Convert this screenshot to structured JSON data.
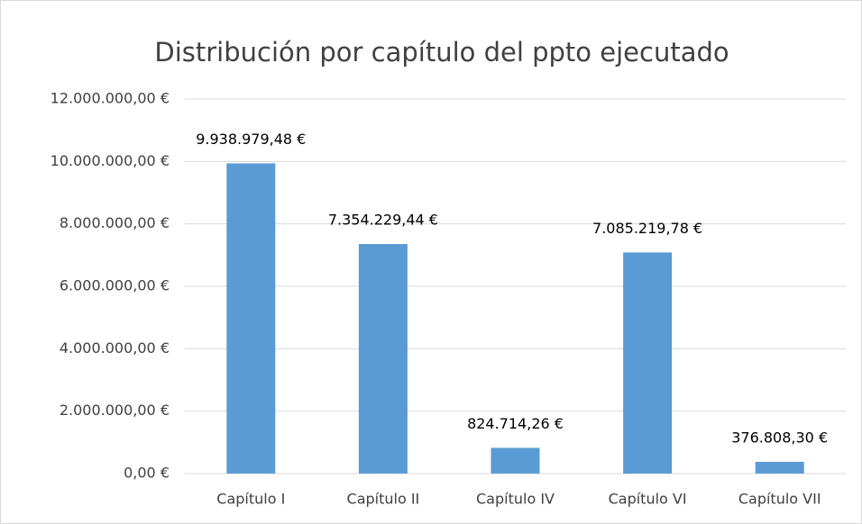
{
  "chart_data": {
    "type": "bar",
    "title": "Distribución por capítulo del ppto ejecutado",
    "categories": [
      "Capítulo I",
      "Capítulo II",
      "Capítulo IV",
      "Capítulo VI",
      "Capítulo VII"
    ],
    "values": [
      9938979.48,
      7354229.44,
      824714.26,
      7085219.78,
      376808.3
    ],
    "value_labels": [
      "9.938.979,48 €",
      "7.354.229,44 €",
      "824.714,26 €",
      "7.085.219,78 €",
      "376.808,30 €"
    ],
    "color": "#5b9bd5",
    "ylim": [
      0,
      12000000
    ],
    "yticks": [
      {
        "value": 0,
        "label": "0,00 €"
      },
      {
        "value": 2000000,
        "label": "2.000.000,00 €"
      },
      {
        "value": 4000000,
        "label": "4.000.000,00 €"
      },
      {
        "value": 6000000,
        "label": "6.000.000,00 €"
      },
      {
        "value": 8000000,
        "label": "8.000.000,00 €"
      },
      {
        "value": 10000000,
        "label": "10.000.000,00 €"
      },
      {
        "value": 12000000,
        "label": "12.000.000,00 €"
      }
    ],
    "grid": true
  }
}
